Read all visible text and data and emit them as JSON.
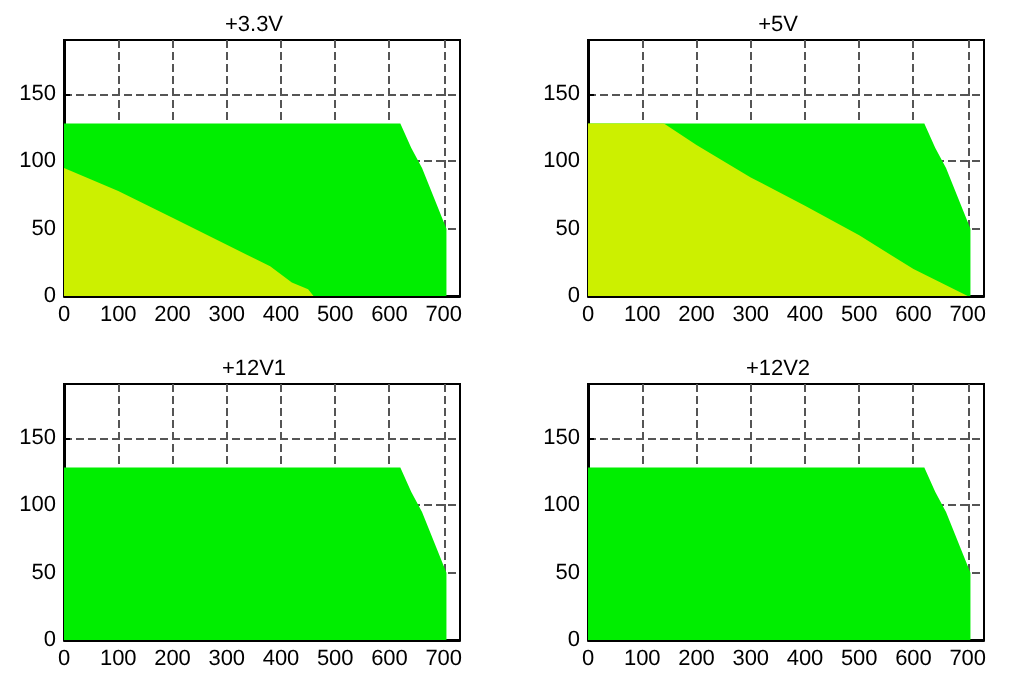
{
  "chart_data": [
    {
      "type": "area",
      "title": "+3.3V",
      "xlim": [
        0,
        730
      ],
      "ylim": [
        0,
        190
      ],
      "xticks": [
        0,
        100,
        200,
        300,
        400,
        500,
        600,
        700
      ],
      "yticks": [
        0,
        50,
        100,
        150
      ],
      "grid": true,
      "line_style": "dashed",
      "series": [
        {
          "color": "#00ee00",
          "x": [
            0,
            620,
            640,
            660,
            680,
            700,
            705,
            705
          ],
          "values": [
            128,
            128,
            110,
            95,
            75,
            55,
            50,
            0
          ]
        },
        {
          "color": "#ccf000",
          "x": [
            0,
            100,
            200,
            300,
            380,
            420,
            450,
            460
          ],
          "values": [
            95,
            78,
            58,
            38,
            22,
            10,
            5,
            0
          ]
        }
      ]
    },
    {
      "type": "area",
      "title": "+5V",
      "xlim": [
        0,
        730
      ],
      "ylim": [
        0,
        190
      ],
      "xticks": [
        0,
        100,
        200,
        300,
        400,
        500,
        600,
        700
      ],
      "yticks": [
        0,
        50,
        100,
        150
      ],
      "grid": true,
      "line_style": "dashed",
      "series": [
        {
          "color": "#00ee00",
          "x": [
            0,
            620,
            640,
            660,
            680,
            700,
            705,
            705
          ],
          "values": [
            128,
            128,
            110,
            95,
            75,
            55,
            50,
            0
          ]
        },
        {
          "color": "#ccf000",
          "x": [
            0,
            140,
            200,
            300,
            400,
            500,
            600,
            650,
            700
          ],
          "values": [
            128,
            128,
            112,
            88,
            67,
            45,
            20,
            10,
            0
          ]
        }
      ]
    },
    {
      "type": "area",
      "title": "+12V1",
      "xlim": [
        0,
        730
      ],
      "ylim": [
        0,
        190
      ],
      "xticks": [
        0,
        100,
        200,
        300,
        400,
        500,
        600,
        700
      ],
      "yticks": [
        0,
        50,
        100,
        150
      ],
      "grid": true,
      "line_style": "dashed",
      "series": [
        {
          "color": "#00ee00",
          "x": [
            0,
            620,
            640,
            660,
            680,
            700,
            705,
            705
          ],
          "values": [
            128,
            128,
            110,
            95,
            75,
            55,
            50,
            0
          ]
        }
      ]
    },
    {
      "type": "area",
      "title": "+12V2",
      "xlim": [
        0,
        730
      ],
      "ylim": [
        0,
        190
      ],
      "xticks": [
        0,
        100,
        200,
        300,
        400,
        500,
        600,
        700
      ],
      "yticks": [
        0,
        50,
        100,
        150
      ],
      "grid": true,
      "line_style": "dashed",
      "series": [
        {
          "color": "#00ee00",
          "x": [
            0,
            620,
            640,
            660,
            680,
            700,
            705,
            705
          ],
          "values": [
            128,
            128,
            110,
            95,
            75,
            55,
            50,
            0
          ]
        }
      ]
    }
  ]
}
